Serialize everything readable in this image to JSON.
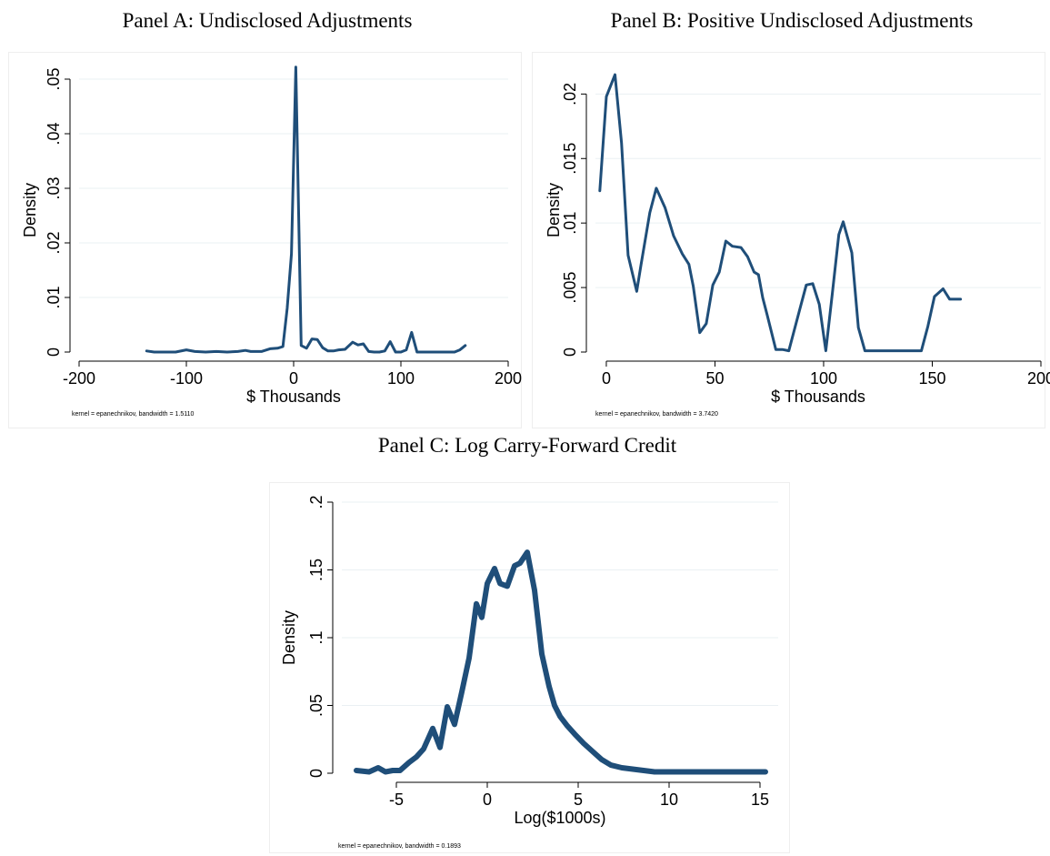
{
  "chart_data": [
    {
      "id": "panel-a",
      "type": "line",
      "title": "Panel A: Undisclosed Adjustments",
      "xlabel": "$ Thousands",
      "ylabel": "Density",
      "xlim": [
        -200,
        200
      ],
      "ylim": [
        0,
        0.052
      ],
      "x_ticks": [
        -200,
        -100,
        0,
        100,
        200
      ],
      "x_tick_labels": [
        "-200",
        "-100",
        "0",
        "100",
        "200"
      ],
      "y_ticks": [
        0,
        0.01,
        0.02,
        0.03,
        0.04,
        0.05
      ],
      "y_tick_labels": [
        "0",
        ".01",
        ".02",
        ".03",
        ".04",
        ".05"
      ],
      "grid": true,
      "note": "kernel = epanechnikov, bandwidth = 1.5110",
      "series": [
        {
          "color": "#1f4e79",
          "x": [
            -137,
            -130,
            -120,
            -110,
            -100,
            -92,
            -82,
            -72,
            -62,
            -52,
            -45,
            -40,
            -30,
            -22,
            -15,
            -10,
            -6,
            -2,
            2,
            7,
            12,
            17,
            22,
            27,
            32,
            37,
            42,
            48,
            55,
            60,
            65,
            70,
            75,
            80,
            85,
            90,
            95,
            100,
            105,
            110,
            115,
            120,
            125,
            130,
            140,
            150,
            155,
            160
          ],
          "y": [
            0.0002,
            0,
            0,
            0,
            0.0004,
            0.0001,
            0,
            0.0001,
            0,
            0.0001,
            0.0003,
            0.0001,
            0.0001,
            0.0006,
            0.0007,
            0.001,
            0.008,
            0.018,
            0.0522,
            0.0012,
            0.0007,
            0.0024,
            0.0023,
            0.0008,
            0.0002,
            0.0002,
            0.0004,
            0.0005,
            0.0018,
            0.0013,
            0.0015,
            0.0001,
            0,
            0,
            0.0002,
            0.0019,
            0,
            0,
            0.0004,
            0.0036,
            0,
            0,
            0,
            0,
            0,
            0,
            0.0004,
            0.0012
          ]
        }
      ]
    },
    {
      "id": "panel-b",
      "type": "line",
      "title": "Panel B: Positive Undisclosed Adjustments",
      "xlabel": "$ Thousands",
      "ylabel": "Density",
      "xlim": [
        -5,
        200
      ],
      "ylim": [
        0,
        0.022
      ],
      "x_ticks": [
        0,
        50,
        100,
        150,
        200
      ],
      "x_tick_labels": [
        "0",
        "50",
        "100",
        "150",
        "200"
      ],
      "y_ticks": [
        0,
        0.005,
        0.01,
        0.015,
        0.02
      ],
      "y_tick_labels": [
        "0",
        ".005",
        ".01",
        ".015",
        ".02"
      ],
      "grid": true,
      "note": "kernel = epanechnikov, bandwidth = 3.7420",
      "series": [
        {
          "color": "#1f4e79",
          "x": [
            -3,
            0,
            4,
            7,
            10,
            14,
            16,
            20,
            23,
            27,
            31,
            35,
            38,
            40,
            43,
            46,
            49,
            52,
            55,
            58,
            62,
            65,
            68,
            70,
            72,
            74,
            78,
            81,
            84,
            89,
            92,
            95,
            98,
            101,
            104,
            107,
            109,
            113,
            116,
            119,
            122,
            124,
            127,
            131,
            136,
            140,
            145,
            148,
            151,
            155,
            158,
            161,
            163
          ],
          "y": [
            0.0125,
            0.0198,
            0.0215,
            0.0162,
            0.0075,
            0.0047,
            0.0068,
            0.0108,
            0.0127,
            0.0112,
            0.009,
            0.0076,
            0.0068,
            0.0051,
            0.0015,
            0.0022,
            0.0052,
            0.0062,
            0.0086,
            0.0082,
            0.0081,
            0.0074,
            0.0062,
            0.006,
            0.0042,
            0.0029,
            0.0002,
            0.0002,
            0.0001,
            0.0033,
            0.0052,
            0.0053,
            0.0037,
            0.0001,
            0.0045,
            0.0091,
            0.0101,
            0.0077,
            0.0019,
            0.0001,
            0.0001,
            0.0001,
            0.0001,
            0.0001,
            0.0001,
            0.0001,
            0.0001,
            0.002,
            0.0043,
            0.0049,
            0.0041,
            0.0041,
            0.0041
          ]
        }
      ]
    },
    {
      "id": "panel-c",
      "type": "line",
      "title": "Panel C: Log Carry-Forward Credit",
      "xlabel": "Log($1000s)",
      "ylabel": "Density",
      "xlim": [
        -8,
        16
      ],
      "ylim": [
        0,
        0.2
      ],
      "x_ticks": [
        -5,
        0,
        5,
        10,
        15
      ],
      "x_tick_labels": [
        "-5",
        "0",
        "5",
        "10",
        "15"
      ],
      "y_ticks": [
        0,
        0.05,
        0.1,
        0.15,
        0.2
      ],
      "y_tick_labels": [
        "0",
        ".05",
        ".1",
        ".15",
        ".2"
      ],
      "grid": true,
      "note": "kernel = epanechnikov, bandwidth = 0.1893",
      "series": [
        {
          "color": "#1f4e79",
          "x": [
            -7.2,
            -6.5,
            -6.0,
            -5.6,
            -5.2,
            -4.8,
            -4.3,
            -3.9,
            -3.5,
            -3.0,
            -2.6,
            -2.2,
            -1.8,
            -1.4,
            -1.0,
            -0.6,
            -0.3,
            0.0,
            0.4,
            0.7,
            1.1,
            1.5,
            1.8,
            2.2,
            2.6,
            3.0,
            3.4,
            3.7,
            4.0,
            4.4,
            4.8,
            5.3,
            5.8,
            6.3,
            6.8,
            7.4,
            8.0,
            8.6,
            9.2,
            9.8,
            10.5,
            11.2,
            12.0,
            13.0,
            14.0,
            15.3
          ],
          "y": [
            0.002,
            0.001,
            0.004,
            0.001,
            0.002,
            0.002,
            0.008,
            0.012,
            0.018,
            0.033,
            0.019,
            0.049,
            0.036,
            0.06,
            0.085,
            0.125,
            0.115,
            0.14,
            0.151,
            0.14,
            0.138,
            0.153,
            0.155,
            0.163,
            0.135,
            0.088,
            0.064,
            0.05,
            0.042,
            0.035,
            0.029,
            0.022,
            0.016,
            0.01,
            0.006,
            0.004,
            0.003,
            0.002,
            0.001,
            0.001,
            0.001,
            0.001,
            0.001,
            0.001,
            0.001,
            0.001
          ]
        }
      ]
    }
  ]
}
